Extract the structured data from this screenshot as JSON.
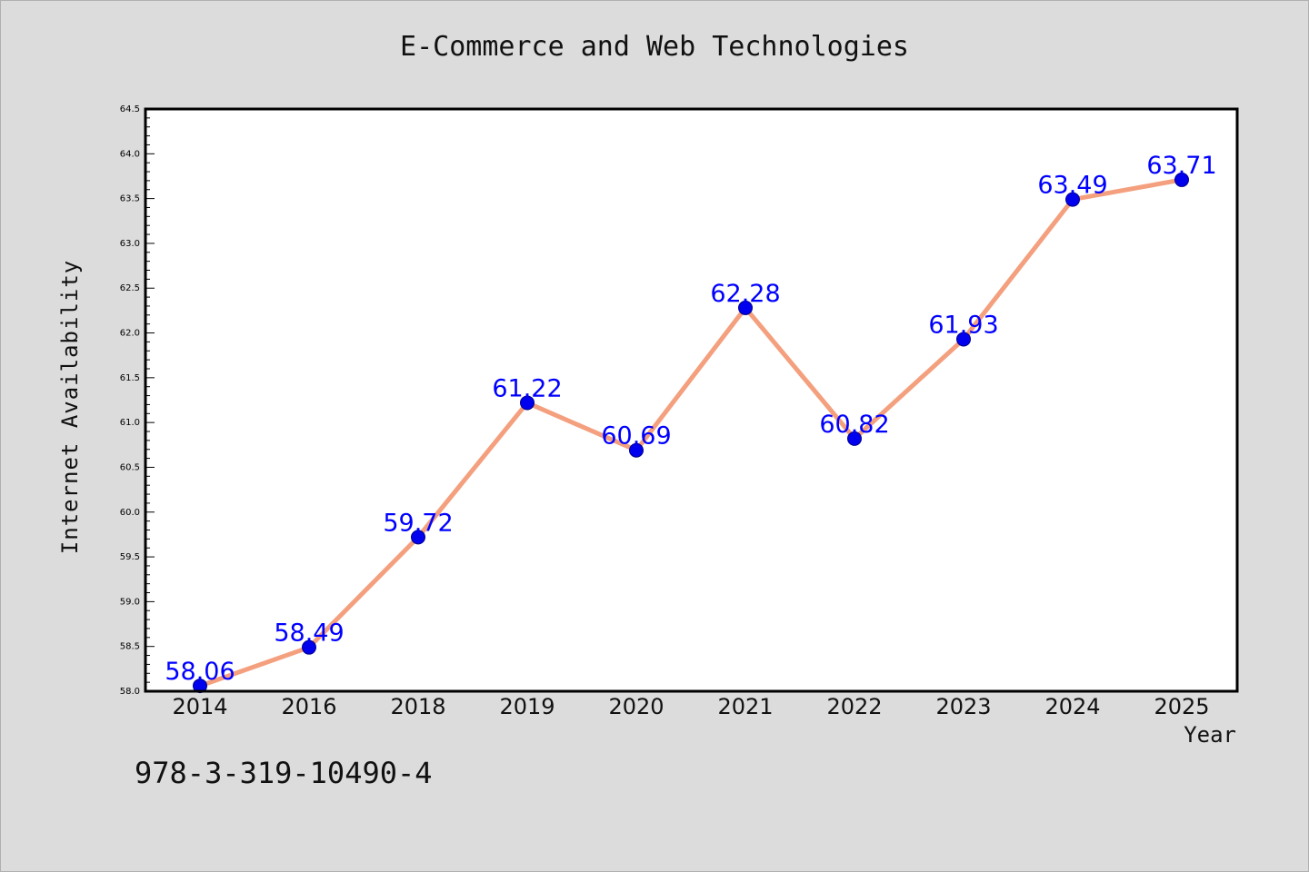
{
  "chart_data": {
    "type": "line",
    "title": "E-Commerce and Web Technologies",
    "xlabel": "Year",
    "ylabel": "Internet Availability",
    "categories": [
      "2014",
      "2016",
      "2018",
      "2019",
      "2020",
      "2021",
      "2022",
      "2023",
      "2024",
      "2025"
    ],
    "values": [
      58.06,
      58.49,
      59.72,
      61.22,
      60.69,
      62.28,
      60.82,
      61.93,
      63.49,
      63.71
    ],
    "data_labels": [
      "58.06",
      "58.49",
      "59.72",
      "61.22",
      "60.69",
      "62.28",
      "60.82",
      "61.93",
      "63.49",
      "63.71"
    ],
    "ylim": [
      58.0,
      64.5
    ],
    "yticks": [
      "58.0",
      "58.5",
      "59.0",
      "59.5",
      "60.0",
      "60.5",
      "61.0",
      "61.5",
      "62.0",
      "62.5",
      "63.0",
      "63.5",
      "64.0",
      "64.5"
    ],
    "grid": false,
    "legend": "none",
    "line_color": "#f4a07e",
    "marker_color": "#0000ee",
    "label_color": "#0000ff"
  },
  "footnote": "978-3-319-10490-4"
}
